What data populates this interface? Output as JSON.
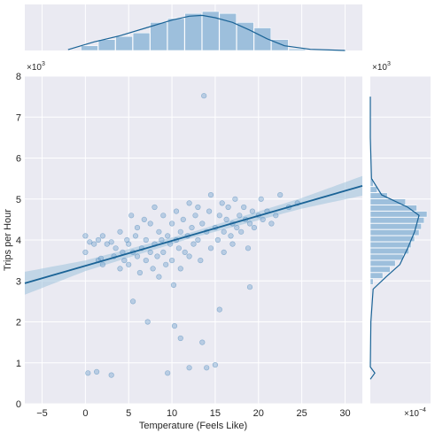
{
  "chart_data": {
    "type": "scatter",
    "title": "",
    "xlabel": "Temperature (Feels Like)",
    "ylabel": "Trips per Hour",
    "xlim": [
      -7,
      32
    ],
    "ylim": [
      0,
      8
    ],
    "xticks": [
      -5,
      0,
      5,
      10,
      15,
      20,
      25,
      30
    ],
    "yticks": [
      0,
      1,
      2,
      3,
      4,
      5,
      6,
      7,
      8
    ],
    "y_multiplier_label": "×10",
    "y_multiplier_exp": "3",
    "marg_y_top_label": "×10",
    "marg_y_top_exp": "3",
    "marg_y_bottom_label": "×10",
    "marg_y_bottom_exp": "−4",
    "grid": true,
    "colors": {
      "background": "#eaeaf2",
      "grid": "#ffffff",
      "point": "#6fa1cc",
      "line": "#1a6396",
      "band": "#9fc2dd",
      "hist": "#9dbfdc",
      "kde": "#1a6396"
    },
    "regression": {
      "slope": 0.061,
      "intercept": 3.37,
      "ci": [
        [
          -7,
          0.28
        ],
        [
          0,
          0.13
        ],
        [
          12,
          0.07
        ],
        [
          25,
          0.13
        ],
        [
          32,
          0.24
        ]
      ]
    },
    "points": [
      [
        0,
        3.7
      ],
      [
        0,
        4.1
      ],
      [
        0.5,
        3.95
      ],
      [
        0.3,
        0.75
      ],
      [
        1,
        3.9
      ],
      [
        1.3,
        0.78
      ],
      [
        1.5,
        3.5
      ],
      [
        1.5,
        4.0
      ],
      [
        1.8,
        3.55
      ],
      [
        2,
        3.4
      ],
      [
        2,
        4.1
      ],
      [
        2.5,
        3.9
      ],
      [
        3,
        3.95
      ],
      [
        3,
        0.7
      ],
      [
        3.3,
        3.6
      ],
      [
        3.5,
        3.8
      ],
      [
        4,
        3.3
      ],
      [
        4,
        4.2
      ],
      [
        4.3,
        3.7
      ],
      [
        4.5,
        3.5
      ],
      [
        4.8,
        4.0
      ],
      [
        5,
        3.9
      ],
      [
        5,
        3.4
      ],
      [
        5.3,
        4.6
      ],
      [
        5.5,
        2.5
      ],
      [
        5.5,
        3.7
      ],
      [
        5.8,
        4.1
      ],
      [
        6,
        3.6
      ],
      [
        6,
        4.3
      ],
      [
        6.3,
        3.2
      ],
      [
        6.5,
        3.8
      ],
      [
        6.8,
        4.5
      ],
      [
        7,
        3.5
      ],
      [
        7,
        4.0
      ],
      [
        7.2,
        2.0
      ],
      [
        7.5,
        3.7
      ],
      [
        7.5,
        4.4
      ],
      [
        7.8,
        3.3
      ],
      [
        8,
        3.9
      ],
      [
        8,
        4.8
      ],
      [
        8.3,
        3.6
      ],
      [
        8.5,
        4.2
      ],
      [
        8.5,
        3.1
      ],
      [
        8.8,
        4.0
      ],
      [
        9,
        3.7
      ],
      [
        9,
        4.6
      ],
      [
        9.3,
        3.4
      ],
      [
        9.5,
        4.1
      ],
      [
        9.5,
        0.75
      ],
      [
        9.8,
        3.9
      ],
      [
        10,
        3.5
      ],
      [
        10,
        4.4
      ],
      [
        10.2,
        2.9
      ],
      [
        10.3,
        1.9
      ],
      [
        10.5,
        4.0
      ],
      [
        10.5,
        4.7
      ],
      [
        10.8,
        3.8
      ],
      [
        11,
        4.2
      ],
      [
        11,
        3.3
      ],
      [
        11,
        1.6
      ],
      [
        11.3,
        4.5
      ],
      [
        11.5,
        3.7
      ],
      [
        11.8,
        4.1
      ],
      [
        12,
        4.9
      ],
      [
        12,
        3.6
      ],
      [
        12,
        0.88
      ],
      [
        12.3,
        4.3
      ],
      [
        12.5,
        3.9
      ],
      [
        12.7,
        4.6
      ],
      [
        13,
        4.0
      ],
      [
        13,
        4.8
      ],
      [
        13.3,
        3.5
      ],
      [
        13.5,
        4.4
      ],
      [
        13.5,
        1.5
      ],
      [
        13.7,
        7.52
      ],
      [
        14,
        4.2
      ],
      [
        14,
        0.88
      ],
      [
        14.3,
        4.7
      ],
      [
        14.5,
        3.8
      ],
      [
        14.5,
        5.1
      ],
      [
        15,
        4.3
      ],
      [
        15,
        0.95
      ],
      [
        15.3,
        4.0
      ],
      [
        15.5,
        4.6
      ],
      [
        15.5,
        2.3
      ],
      [
        15.8,
        4.9
      ],
      [
        16,
        4.2
      ],
      [
        16,
        3.7
      ],
      [
        16.3,
        4.5
      ],
      [
        16.5,
        4.8
      ],
      [
        16.8,
        4.1
      ],
      [
        17,
        4.4
      ],
      [
        17,
        3.9
      ],
      [
        17.3,
        5.0
      ],
      [
        17.5,
        4.3
      ],
      [
        17.8,
        4.6
      ],
      [
        18,
        4.2
      ],
      [
        18.3,
        4.8
      ],
      [
        18.5,
        4.5
      ],
      [
        18.8,
        3.8
      ],
      [
        19,
        4.4
      ],
      [
        19,
        2.85
      ],
      [
        19.3,
        4.7
      ],
      [
        19.5,
        4.3
      ],
      [
        20,
        4.6
      ],
      [
        20.3,
        5.0
      ],
      [
        20.5,
        4.5
      ],
      [
        21,
        4.7
      ],
      [
        21.5,
        4.4
      ],
      [
        22,
        4.6
      ],
      [
        22.5,
        5.1
      ],
      [
        23.5,
        4.8
      ],
      [
        24.5,
        4.9
      ]
    ],
    "marg_x_hist": {
      "bin_edges": [
        -0.5,
        1.5,
        3.5,
        5.5,
        7.5,
        9.5,
        11.5,
        13.5,
        15.5,
        17.5,
        19.5,
        21.5,
        23.5,
        25.5
      ],
      "heights": [
        0.12,
        0.28,
        0.36,
        0.45,
        0.72,
        0.82,
        0.95,
        1.0,
        0.95,
        0.72,
        0.58,
        0.28,
        0.04
      ],
      "kde": [
        [
          -2,
          0.02
        ],
        [
          1,
          0.22
        ],
        [
          4,
          0.38
        ],
        [
          7,
          0.58
        ],
        [
          10,
          0.78
        ],
        [
          12,
          0.88
        ],
        [
          13.5,
          0.9
        ],
        [
          15,
          0.84
        ],
        [
          17,
          0.72
        ],
        [
          19,
          0.52
        ],
        [
          21,
          0.3
        ],
        [
          23,
          0.12
        ],
        [
          26,
          0.03
        ],
        [
          30,
          0.0
        ]
      ]
    },
    "marg_y_hist": {
      "bin_edges": [
        2.9,
        3.05,
        3.2,
        3.35,
        3.5,
        3.65,
        3.8,
        3.95,
        4.1,
        4.25,
        4.4,
        4.55,
        4.7,
        4.85,
        5.0,
        5.15,
        5.3,
        5.5
      ],
      "heights": [
        0.05,
        0.22,
        0.35,
        0.44,
        0.58,
        0.68,
        0.72,
        0.78,
        0.86,
        0.9,
        0.95,
        1.0,
        0.82,
        0.62,
        0.3,
        0.12,
        0.05
      ],
      "kde": [
        [
          0.6,
          0.0
        ],
        [
          0.75,
          0.08
        ],
        [
          0.9,
          0.0
        ],
        [
          2.0,
          0.01
        ],
        [
          2.8,
          0.05
        ],
        [
          3.1,
          0.28
        ],
        [
          3.4,
          0.52
        ],
        [
          3.8,
          0.66
        ],
        [
          4.2,
          0.78
        ],
        [
          4.6,
          0.86
        ],
        [
          4.8,
          0.66
        ],
        [
          5.1,
          0.2
        ],
        [
          5.5,
          0.02
        ],
        [
          6.5,
          0.0
        ],
        [
          7.5,
          0.0
        ]
      ]
    }
  }
}
